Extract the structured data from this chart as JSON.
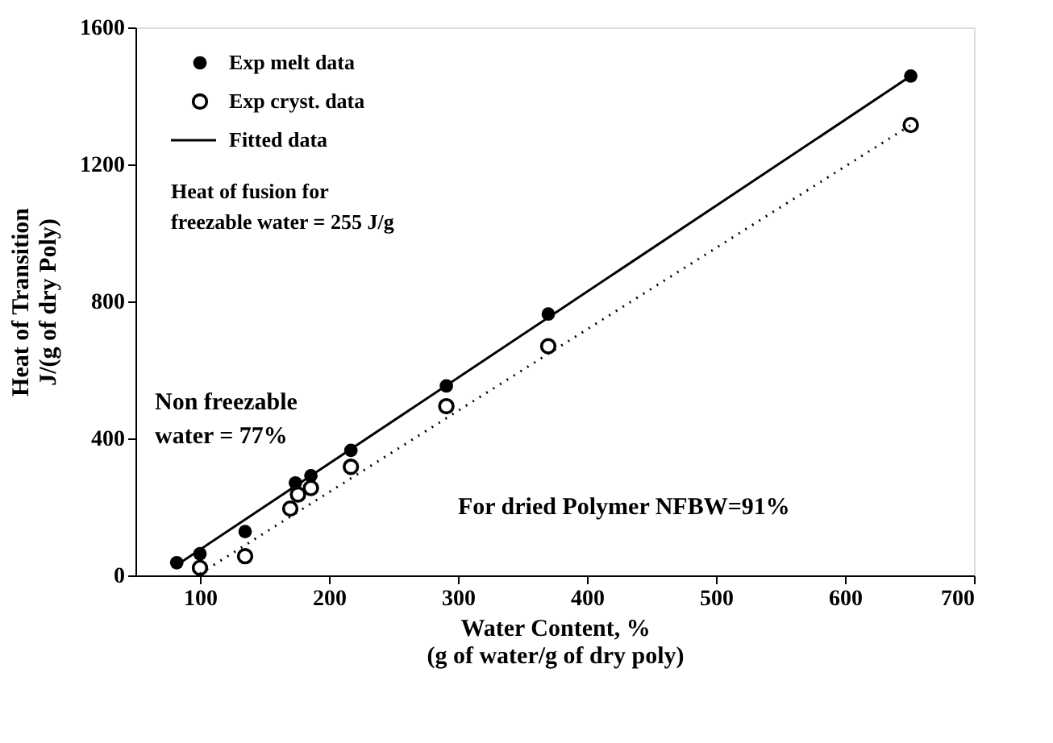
{
  "chart_data": {
    "type": "scatter",
    "xlabel": "Water Content, %\n(g of water/g of dry poly)",
    "ylabel": "Heat of Transition\nJ/(g of dry Poly)",
    "xlim": [
      50,
      700
    ],
    "xticks": [
      100,
      200,
      300,
      400,
      500,
      600,
      700
    ],
    "ylim": [
      0,
      1600
    ],
    "yticks": [
      0,
      400,
      800,
      1200,
      1600
    ],
    "grid": false,
    "legend": "top left",
    "series": [
      {
        "name": "Exp melt data",
        "marker": "circle",
        "color": "#000000",
        "x": [
          82,
          100,
          135,
          174,
          186,
          217,
          291,
          370,
          651
        ],
        "values": [
          37,
          63,
          128,
          270,
          291,
          365,
          553,
          763,
          1458
        ]
      },
      {
        "name": "Exp cryst. data",
        "marker": "circle",
        "color": "#000000",
        "x": [
          100,
          135,
          170,
          176,
          186,
          217,
          291,
          370,
          651
        ],
        "values": [
          22,
          56,
          195,
          236,
          255,
          317,
          494,
          669,
          1315
        ]
      },
      {
        "name": "Fitted data",
        "type": "line",
        "line_style": "solid",
        "color": "#000000",
        "x": [
          82,
          651
        ],
        "values": [
          30,
          1458
        ]
      },
      {
        "type": "line",
        "line_style": "dotted",
        "color": "#000000",
        "x": [
          100,
          651
        ],
        "values": [
          5,
          1315
        ]
      }
    ],
    "annotations": [
      "Heat of fusion for\nfreezable water  = 255 J/g",
      "Non freezable\nwater = 77%",
      "For dried Polymer NFBW=91%"
    ]
  }
}
